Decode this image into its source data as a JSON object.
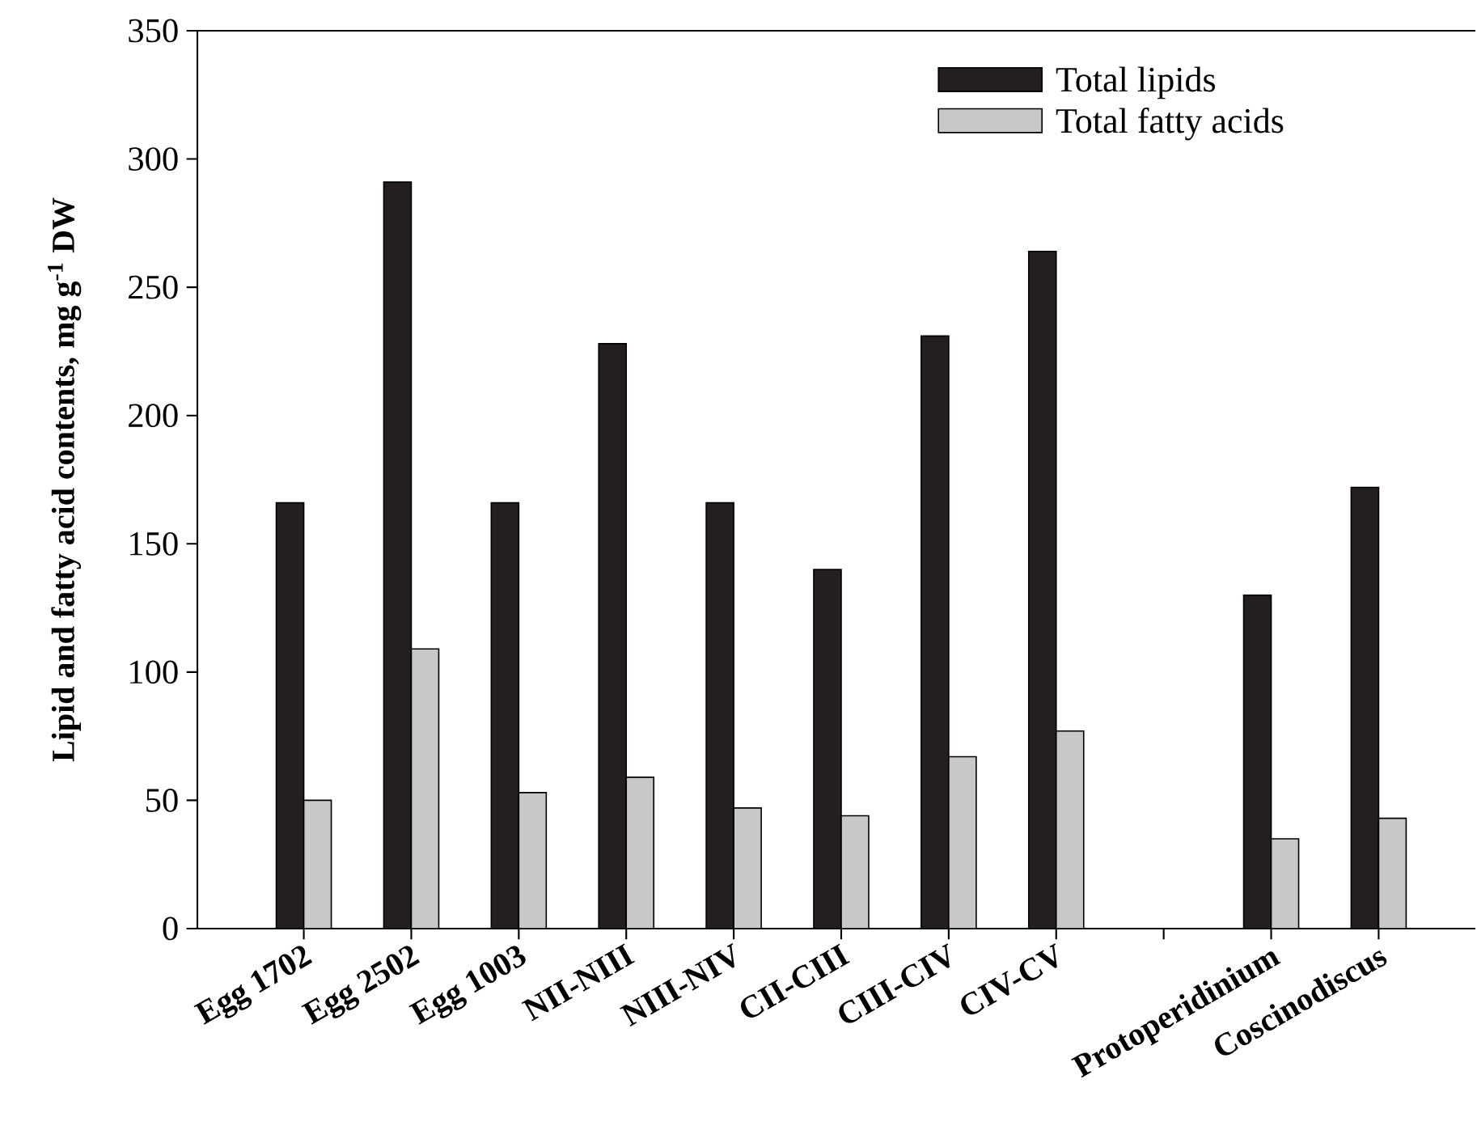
{
  "chart_data": {
    "type": "bar",
    "ylabel": "Lipid and fatty acid contents, mg g$^{-1}$ DW",
    "categories": [
      "Egg 1702",
      "Egg 2502",
      "Egg 1003",
      "NII-NIII",
      "NIII-NIV",
      "CII-CIII",
      "CIII-CIV",
      "CIV-CV",
      null,
      "Protoperidinium",
      "Coscinodiscus"
    ],
    "series": [
      {
        "name": "Total lipids",
        "color": "#231f20",
        "values": [
          166,
          291,
          166,
          228,
          166,
          140,
          231,
          264,
          null,
          130,
          172
        ]
      },
      {
        "name": "Total fatty acids",
        "color": "#c8c8c8",
        "values": [
          50,
          109,
          53,
          59,
          47,
          44,
          67,
          77,
          null,
          35,
          43
        ]
      }
    ],
    "ylim": [
      0,
      350
    ],
    "yticks": [
      0,
      50,
      100,
      150,
      200,
      250,
      300,
      350
    ],
    "grid": false,
    "legend": "top"
  }
}
